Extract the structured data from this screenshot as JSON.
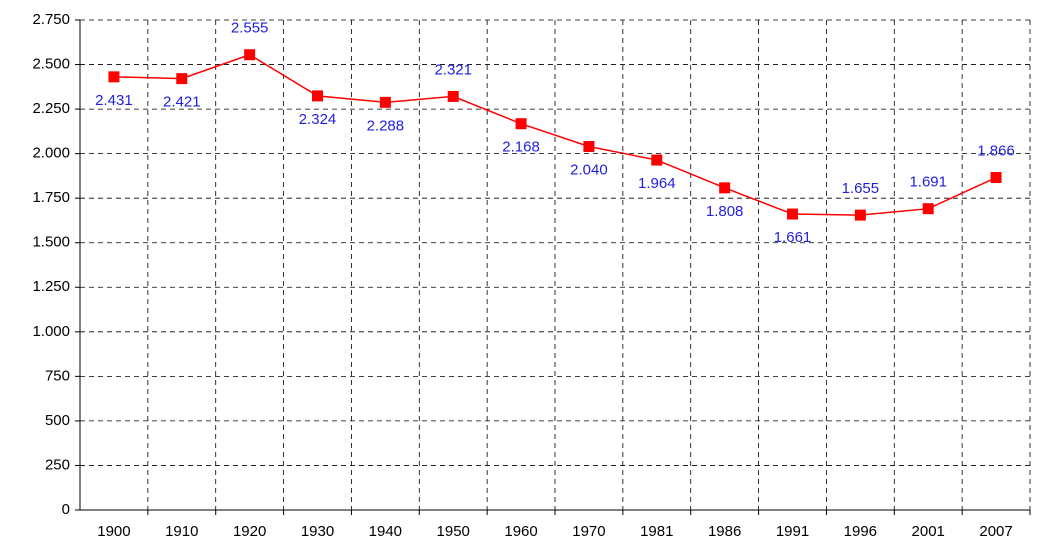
{
  "chart_data": {
    "type": "line",
    "categories": [
      "1900",
      "1910",
      "1920",
      "1930",
      "1940",
      "1950",
      "1960",
      "1970",
      "1981",
      "1986",
      "1991",
      "1996",
      "2001",
      "2007"
    ],
    "series": [
      {
        "color": "#ff0000",
        "values": [
          2431,
          2421,
          2555,
          2324,
          2288,
          2321,
          2168,
          2040,
          1964,
          1808,
          1661,
          1655,
          1691,
          1866
        ],
        "value_labels": [
          "2.431",
          "2.421",
          "2.555",
          "2.324",
          "2.288",
          "2.321",
          "2.168",
          "2.040",
          "1.964",
          "1.808",
          "1.661",
          "1.655",
          "1.691",
          "1.866"
        ]
      }
    ],
    "ylim": [
      0,
      2750
    ],
    "yticks": [
      0,
      250,
      500,
      750,
      {
        "value": 1000,
        "label": "1.000"
      },
      {
        "value": 1250,
        "label": "1.250"
      },
      {
        "value": 1500,
        "label": "1.500"
      },
      {
        "value": 1750,
        "label": "1.750"
      },
      {
        "value": 2000,
        "label": "2.000"
      },
      {
        "value": 2250,
        "label": "2.250"
      },
      {
        "value": 2500,
        "label": "2.500"
      },
      {
        "value": 2750,
        "label": "2.750"
      }
    ],
    "grid": true
  }
}
